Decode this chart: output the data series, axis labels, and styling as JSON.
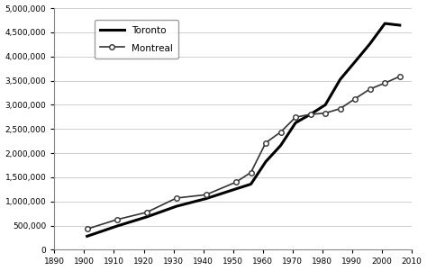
{
  "montreal": {
    "years": [
      1901,
      1911,
      1921,
      1931,
      1941,
      1951,
      1956,
      1961,
      1966,
      1971,
      1976,
      1981,
      1986,
      1991,
      1996,
      2001,
      2006
    ],
    "values": [
      430000,
      625000,
      775000,
      1070000,
      1140000,
      1400000,
      1600000,
      2215000,
      2436000,
      2743000,
      2802000,
      2828000,
      2921000,
      3127000,
      3326000,
      3450000,
      3588000
    ]
  },
  "toronto": {
    "years": [
      1901,
      1911,
      1921,
      1931,
      1941,
      1951,
      1956,
      1961,
      1966,
      1971,
      1976,
      1981,
      1986,
      1991,
      1996,
      2001,
      2006
    ],
    "values": [
      280000,
      490000,
      680000,
      900000,
      1060000,
      1260000,
      1358000,
      1824000,
      2158000,
      2628000,
      2803000,
      2999000,
      3527000,
      3893000,
      4264000,
      4683000,
      4647000
    ]
  },
  "xlim": [
    1890,
    2010
  ],
  "ylim": [
    0,
    5000000
  ],
  "yticks": [
    0,
    500000,
    1000000,
    1500000,
    2000000,
    2500000,
    3000000,
    3500000,
    4000000,
    4500000,
    5000000
  ],
  "xticks": [
    1890,
    1900,
    1910,
    1920,
    1930,
    1940,
    1950,
    1960,
    1970,
    1980,
    1990,
    2000,
    2010
  ],
  "montreal_color": "#333333",
  "toronto_color": "#000000",
  "background_color": "#ffffff",
  "legend_montreal": "Montreal",
  "legend_toronto": "Toronto"
}
